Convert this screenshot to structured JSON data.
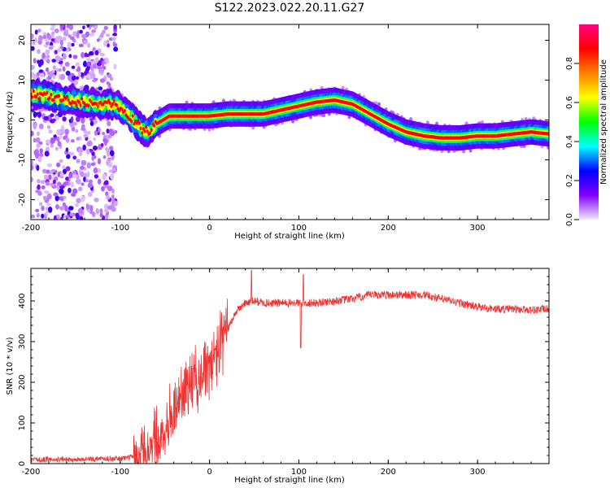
{
  "title": "S122.2023.022.20.11.G27",
  "colors": {
    "snr_line": "#ee3333",
    "axis": "#000000",
    "background": "#ffffff"
  },
  "chart_data": [
    {
      "type": "heatmap",
      "xlabel": "Height of straight line (km)",
      "ylabel": "Frequency (Hz)",
      "xlim": [
        -200,
        380
      ],
      "ylim": [
        -25,
        24
      ],
      "xticks": [
        -200,
        -100,
        0,
        100,
        200,
        300
      ],
      "yticks": [
        -20,
        -10,
        0,
        10,
        20
      ],
      "colorbar": {
        "label": "Normalized spectral amplitude",
        "range": [
          0,
          1
        ],
        "ticks": [
          "0.0",
          "0.2",
          "0.4",
          "0.6",
          "0.8"
        ],
        "colormap": [
          "#f2e8ff",
          "#8000ff",
          "#0000ff",
          "#00ffff",
          "#00ff00",
          "#ffff00",
          "#ff8000",
          "#ff0000",
          "#ff0080"
        ]
      },
      "ridge": {
        "x": [
          -200,
          -180,
          -160,
          -140,
          -120,
          -105,
          -95,
          -85,
          -75,
          -68,
          -60,
          -52,
          -45,
          -40,
          -30,
          -20,
          -10,
          0,
          20,
          40,
          60,
          80,
          100,
          120,
          140,
          160,
          180,
          200,
          220,
          240,
          260,
          280,
          300,
          320,
          340,
          360,
          380
        ],
        "y": [
          6.5,
          6,
          5,
          4.5,
          4,
          4,
          2,
          0,
          -2.5,
          -3,
          -1,
          0,
          1,
          1,
          1,
          1,
          1,
          1,
          1.5,
          1.5,
          1.5,
          2.5,
          3.5,
          4.5,
          5,
          4,
          1.5,
          -1,
          -3,
          -4,
          -4.5,
          -4.5,
          -4,
          -4,
          -3.5,
          -3,
          -3.5
        ]
      }
    },
    {
      "type": "line",
      "xlabel": "Height of straight line (km)",
      "ylabel": "SNR (10 * v/v)",
      "xlim": [
        -200,
        380
      ],
      "ylim": [
        0,
        480
      ],
      "xticks": [
        -200,
        -100,
        0,
        100,
        200,
        300
      ],
      "yticks": [
        0,
        100,
        200,
        300,
        400
      ],
      "series": [
        {
          "x": [
            -200,
            -150,
            -120,
            -100,
            -80,
            -70,
            -60,
            -50,
            -40,
            -30,
            -20,
            -10,
            0,
            10,
            20,
            30,
            40,
            50,
            60,
            80,
            100,
            120,
            140,
            160,
            180,
            200,
            220,
            240,
            260,
            280,
            300,
            320,
            340,
            360,
            380
          ],
          "values": [
            10,
            10,
            12,
            12,
            20,
            40,
            60,
            90,
            130,
            170,
            200,
            215,
            230,
            280,
            330,
            375,
            395,
            400,
            395,
            395,
            395,
            395,
            400,
            405,
            415,
            415,
            415,
            415,
            405,
            395,
            385,
            380,
            380,
            378,
            380
          ]
        }
      ],
      "spikes": [
        {
          "x": 47,
          "value": 475
        },
        {
          "x": 102,
          "value": 285
        },
        {
          "x": 105,
          "value": 465
        }
      ]
    }
  ]
}
